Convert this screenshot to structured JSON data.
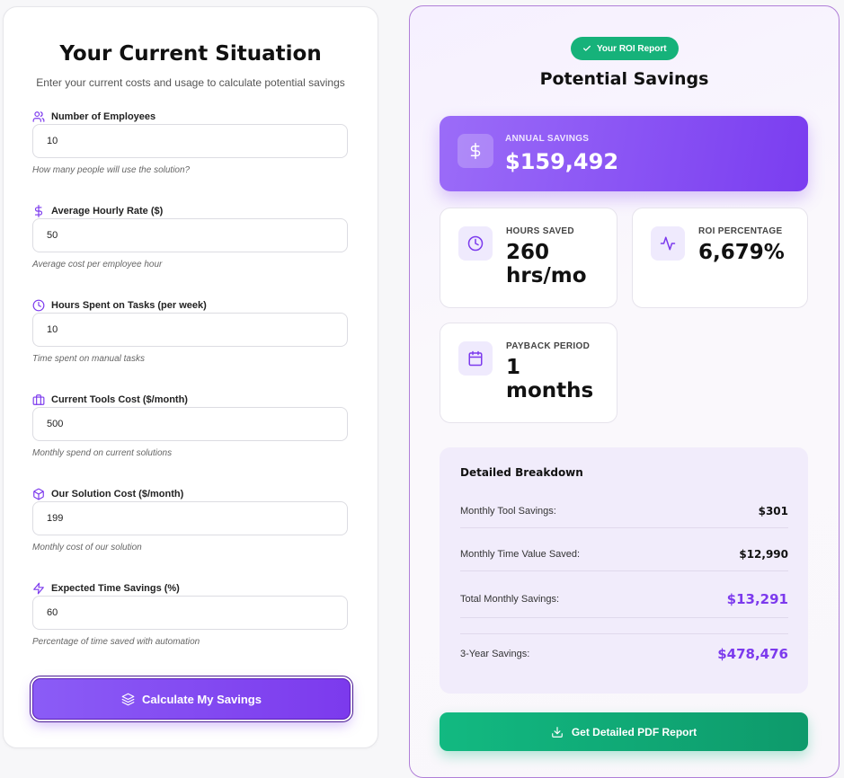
{
  "left": {
    "title": "Your Current Situation",
    "subtitle": "Enter your current costs and usage to calculate potential savings",
    "fields": [
      {
        "label": "Number of Employees",
        "value": "10",
        "help": "How many people will use the solution?",
        "icon": "users-icon"
      },
      {
        "label": "Average Hourly Rate ($)",
        "value": "50",
        "help": "Average cost per employee hour",
        "icon": "dollar-icon"
      },
      {
        "label": "Hours Spent on Tasks (per week)",
        "value": "10",
        "help": "Time spent on manual tasks",
        "icon": "clock-icon"
      },
      {
        "label": "Current Tools Cost ($/month)",
        "value": "500",
        "help": "Monthly spend on current solutions",
        "icon": "briefcase-icon"
      },
      {
        "label": "Our Solution Cost ($/month)",
        "value": "199",
        "help": "Monthly cost of our solution",
        "icon": "package-icon"
      },
      {
        "label": "Expected Time Savings (%)",
        "value": "60",
        "help": "Percentage of time saved with automation",
        "icon": "zap-icon"
      }
    ],
    "calculate_label": "Calculate My Savings"
  },
  "right": {
    "badge": "Your ROI Report",
    "title": "Potential Savings",
    "annual": {
      "label": "ANNUAL SAVINGS",
      "value": "$159,492"
    },
    "hours": {
      "label": "HOURS SAVED",
      "value": "260 hrs/mo"
    },
    "roi": {
      "label": "ROI PERCENTAGE",
      "value": "6,679%"
    },
    "payback": {
      "label": "PAYBACK PERIOD",
      "value": "1 months"
    },
    "breakdown": {
      "title": "Detailed Breakdown",
      "rows": [
        {
          "label": "Monthly Tool Savings:",
          "value": "$301"
        },
        {
          "label": "Monthly Time Value Saved:",
          "value": "$12,990"
        },
        {
          "label": "Total Monthly Savings:",
          "value": "$13,291"
        },
        {
          "label": "3-Year Savings:",
          "value": "$478,476"
        }
      ]
    },
    "pdf_label": "Get Detailed PDF Report"
  },
  "colors": {
    "accent": "#7c3aed",
    "success": "#10b981"
  }
}
